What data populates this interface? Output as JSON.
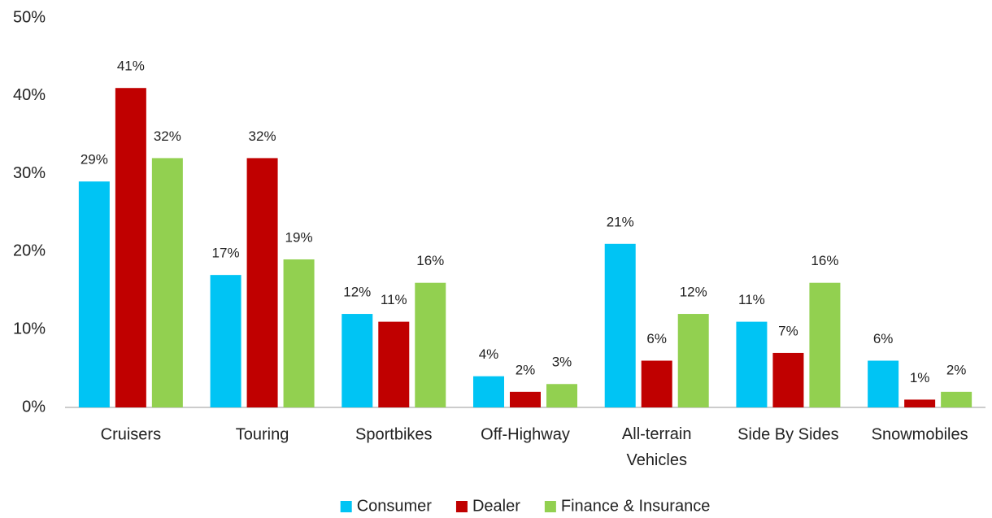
{
  "chart_data": {
    "type": "bar",
    "categories": [
      "Cruisers",
      "Touring",
      "Sportbikes",
      "Off-Highway",
      "All-terrain Vehicles",
      "Side By Sides",
      "Snowmobiles"
    ],
    "series": [
      {
        "name": "Consumer",
        "color": "#00c4f4",
        "values": [
          29,
          17,
          12,
          4,
          21,
          11,
          6
        ],
        "value_labels": [
          "29%",
          "17%",
          "12%",
          "4%",
          "21%",
          "11%",
          "6%"
        ]
      },
      {
        "name": "Dealer",
        "color": "#c00000",
        "values": [
          41,
          32,
          11,
          2,
          6,
          7,
          1
        ],
        "value_labels": [
          "41%",
          "32%",
          "11%",
          "2%",
          "6%",
          "7%",
          "1%"
        ]
      },
      {
        "name": "Finance & Insurance",
        "color": "#92d050",
        "values": [
          32,
          19,
          16,
          3,
          12,
          16,
          2
        ],
        "value_labels": [
          "32%",
          "19%",
          "16%",
          "3%",
          "12%",
          "16%",
          "2%"
        ]
      }
    ],
    "ylim": [
      0,
      50
    ],
    "yticks": [
      {
        "value": 0,
        "label": "0%"
      },
      {
        "value": 10,
        "label": "10%"
      },
      {
        "value": 20,
        "label": "20%"
      },
      {
        "value": 30,
        "label": "30%"
      },
      {
        "value": 40,
        "label": "40%"
      },
      {
        "value": 50,
        "label": "50%"
      }
    ],
    "grid": false,
    "legend": "bottom"
  }
}
